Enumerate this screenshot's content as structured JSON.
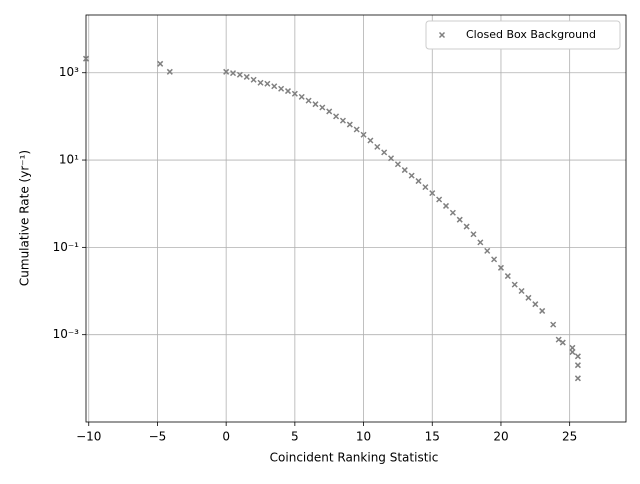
{
  "chart_data": {
    "type": "scatter",
    "xlabel": "Coincident Ranking Statistic",
    "ylabel": "Cumulative Rate (yr⁻¹)",
    "series": [
      {
        "name": "Closed Box Background",
        "color": "#808080",
        "x": [
          -10.2,
          -4.8,
          -4.1,
          0,
          0.5,
          1,
          1.5,
          2,
          2.5,
          3,
          3.5,
          4,
          4.5,
          5,
          5.5,
          6,
          6.5,
          7,
          7.5,
          8,
          8.5,
          9,
          9.5,
          10,
          10.5,
          11,
          11.5,
          12,
          12.5,
          13,
          13.5,
          14,
          14.5,
          15,
          15.5,
          16,
          16.5,
          17,
          17.5,
          18,
          18.5,
          19,
          19.5,
          20,
          20.5,
          21,
          21.5,
          22,
          22.5,
          23,
          23.8,
          24.2,
          24.5,
          25.2,
          25.2,
          25.6,
          25.6,
          25.6
        ],
        "values": [
          2100,
          1600,
          1050,
          1050,
          980,
          900,
          800,
          690,
          590,
          560,
          490,
          430,
          380,
          330,
          280,
          230,
          190,
          160,
          130,
          100,
          80,
          65,
          50,
          38,
          28,
          20,
          15,
          11,
          8,
          5.9,
          4.4,
          3.3,
          2.4,
          1.75,
          1.25,
          0.89,
          0.62,
          0.43,
          0.3,
          0.2,
          0.13,
          0.083,
          0.053,
          0.034,
          0.022,
          0.014,
          0.01,
          0.007,
          0.005,
          0.0035,
          0.0017,
          0.00077,
          0.00066,
          0.0005,
          0.0004,
          0.00032,
          0.0002,
          0.0001
        ]
      }
    ],
    "xlim": [
      -10.2,
      29.1
    ],
    "xticks": [
      {
        "value": -10,
        "label": "−10"
      },
      {
        "value": -5,
        "label": "−5"
      },
      0,
      5,
      10,
      15,
      20,
      25
    ],
    "ylim": [
      1e-05,
      21000
    ],
    "log_y": true,
    "yticks": [
      {
        "value": 0.001,
        "label": "10⁻³"
      },
      {
        "value": 0.1,
        "label": "10⁻¹"
      },
      {
        "value": 10,
        "label": "10¹"
      },
      {
        "value": 1000,
        "label": "10³"
      }
    ],
    "grid": true,
    "legend": "upper right"
  }
}
